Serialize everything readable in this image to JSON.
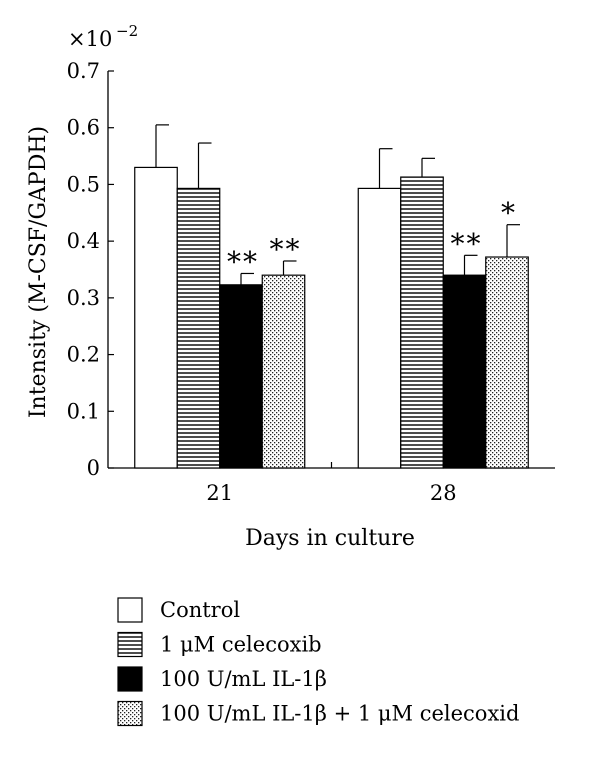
{
  "chart_data": {
    "type": "bar",
    "title": "",
    "scale_multiplier": "×10",
    "scale_exponent": "−2",
    "xlabel": "Days in culture",
    "ylabel": "Intensity (M-CSF/GAPDH)",
    "ylim": [
      0,
      0.7
    ],
    "yticks": [
      "0",
      "0.1",
      "0.2",
      "0.3",
      "0.4",
      "0.5",
      "0.6",
      "0.7"
    ],
    "categories": [
      "21",
      "28"
    ],
    "series": [
      {
        "name": "Control",
        "fill": "white",
        "values": [
          0.53,
          0.493
        ],
        "errors": [
          0.075,
          0.07
        ],
        "annotations": [
          "",
          ""
        ]
      },
      {
        "name": "1 μM celecoxib",
        "fill": "hlines",
        "values": [
          0.493,
          0.513
        ],
        "errors": [
          0.08,
          0.033
        ],
        "annotations": [
          "",
          ""
        ]
      },
      {
        "name": "100 U/mL IL-1β",
        "fill": "black",
        "values": [
          0.323,
          0.34
        ],
        "errors": [
          0.02,
          0.035
        ],
        "annotations": [
          "**",
          "**"
        ]
      },
      {
        "name": "100 U/mL IL-1β + 1 μM celecoxid",
        "fill": "dots",
        "values": [
          0.34,
          0.372
        ],
        "errors": [
          0.025,
          0.057
        ],
        "annotations": [
          "**",
          "*"
        ]
      }
    ],
    "legend_position": "bottom",
    "grid": false
  }
}
